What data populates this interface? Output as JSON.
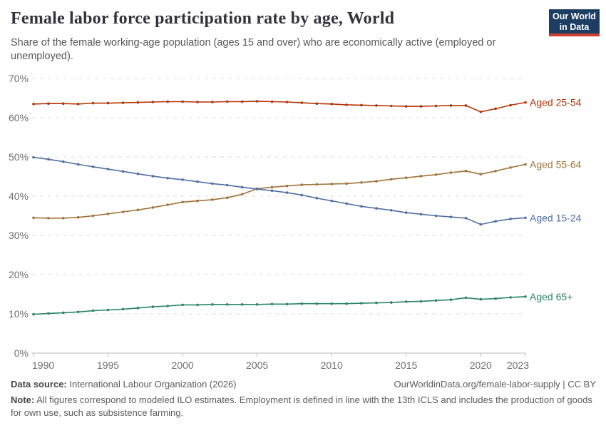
{
  "header": {
    "title": "Female labor force participation rate by age, World",
    "subtitle": "Share of the female working-age population (ages 15 and over) who are economically active (employed or unemployed).",
    "logo": {
      "line1": "Our World",
      "line2": "in Data",
      "bg_color": "#1d3d63",
      "bar_color": "#cf3c32"
    }
  },
  "chart_data": {
    "type": "line",
    "title": "Female labor force participation rate by age, World",
    "xlabel": "",
    "ylabel": "",
    "ylim": [
      0,
      70
    ],
    "y_ticks": [
      0,
      10,
      20,
      30,
      40,
      50,
      60,
      70
    ],
    "y_tick_suffix": "%",
    "x_ticks": [
      1990,
      1995,
      2000,
      2005,
      2010,
      2015,
      2020,
      2023
    ],
    "grid": "horizontal-dashed",
    "legend_position": "right-end-labels",
    "x": [
      1990,
      1991,
      1992,
      1993,
      1994,
      1995,
      1996,
      1997,
      1998,
      1999,
      2000,
      2001,
      2002,
      2003,
      2004,
      2005,
      2006,
      2007,
      2008,
      2009,
      2010,
      2011,
      2012,
      2013,
      2014,
      2015,
      2016,
      2017,
      2018,
      2019,
      2020,
      2021,
      2022,
      2023
    ],
    "series": [
      {
        "name": "Aged 25-54",
        "color": "#b13507",
        "values": [
          63.5,
          63.6,
          63.6,
          63.5,
          63.7,
          63.7,
          63.8,
          63.9,
          64.0,
          64.1,
          64.1,
          64.0,
          64.0,
          64.1,
          64.1,
          64.2,
          64.1,
          64.0,
          63.8,
          63.6,
          63.5,
          63.3,
          63.2,
          63.1,
          63.0,
          62.9,
          62.9,
          63.0,
          63.1,
          63.1,
          61.5,
          62.3,
          63.2,
          63.9
        ]
      },
      {
        "name": "Aged 55-64",
        "color": "#a0733a",
        "values": [
          34.5,
          34.4,
          34.4,
          34.6,
          35.0,
          35.5,
          36.0,
          36.5,
          37.1,
          37.8,
          38.5,
          38.8,
          39.1,
          39.6,
          40.5,
          41.9,
          42.3,
          42.6,
          42.9,
          43.0,
          43.1,
          43.2,
          43.5,
          43.8,
          44.3,
          44.7,
          45.1,
          45.5,
          46.0,
          46.4,
          45.6,
          46.4,
          47.3,
          48.1
        ]
      },
      {
        "name": "Aged 15-24",
        "color": "#4f6ea5",
        "values": [
          49.9,
          49.4,
          48.8,
          48.1,
          47.5,
          46.9,
          46.3,
          45.7,
          45.1,
          44.6,
          44.2,
          43.7,
          43.2,
          42.8,
          42.3,
          41.8,
          41.4,
          40.9,
          40.3,
          39.5,
          38.8,
          38.1,
          37.4,
          36.9,
          36.4,
          35.8,
          35.4,
          35.0,
          34.7,
          34.4,
          32.8,
          33.6,
          34.2,
          34.5
        ]
      },
      {
        "name": "Aged 65+",
        "color": "#2c8465",
        "values": [
          9.9,
          10.1,
          10.3,
          10.5,
          10.8,
          11.0,
          11.2,
          11.5,
          11.8,
          12.0,
          12.3,
          12.3,
          12.4,
          12.4,
          12.4,
          12.4,
          12.5,
          12.5,
          12.6,
          12.6,
          12.6,
          12.6,
          12.7,
          12.8,
          12.9,
          13.1,
          13.2,
          13.4,
          13.6,
          14.1,
          13.7,
          13.9,
          14.2,
          14.4
        ]
      }
    ]
  },
  "footer": {
    "source_label": "Data source:",
    "source_text": " International Labour Organization (2026)",
    "citation_text": "OurWorldinData.org/female-labor-supply | CC BY",
    "note_label": "Note:",
    "note_text": " All figures correspond to modeled ILO estimates. Employment is defined in line with the 13th ICLS and includes the production of goods for own use, such as subsistence farming."
  }
}
